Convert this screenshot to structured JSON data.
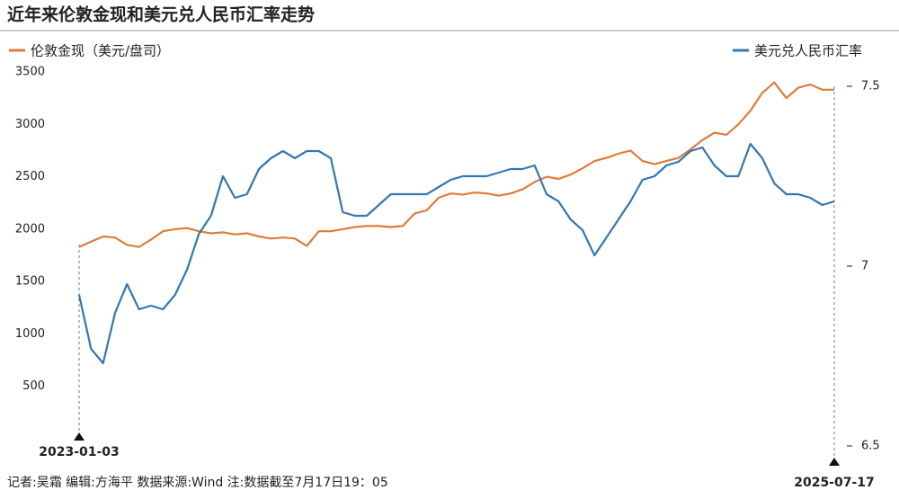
{
  "chart_data": {
    "type": "line",
    "title": "近年来伦敦金现和美元兑人民币汇率走势",
    "note": "记者:吴霜  编辑:方海平  数据来源:Wind  注:数据截至7月17日19：05",
    "categories": [
      "2023-01-03",
      null,
      null,
      null,
      null,
      null,
      null,
      null,
      null,
      null,
      null,
      null,
      null,
      null,
      null,
      null,
      null,
      null,
      null,
      null,
      null,
      null,
      null,
      null,
      null,
      null,
      null,
      null,
      null,
      null,
      null,
      null,
      null,
      null,
      null,
      null,
      null,
      null,
      null,
      null,
      null,
      null,
      null,
      null,
      null,
      null,
      null,
      null,
      null,
      null,
      null,
      null,
      null,
      null,
      null,
      null,
      null,
      null,
      null,
      null,
      null,
      null,
      null,
      "2025-07-17"
    ],
    "series": [
      {
        "name": "伦敦金现（美元/盘司）",
        "color": "#e07b39",
        "axis": "y",
        "values": [
          1830,
          1880,
          1930,
          1920,
          1850,
          1830,
          1900,
          1980,
          2000,
          2010,
          1980,
          1960,
          1970,
          1950,
          1960,
          1930,
          1910,
          1920,
          1910,
          1840,
          1980,
          1980,
          2000,
          2020,
          2030,
          2030,
          2020,
          2030,
          2150,
          2180,
          2300,
          2340,
          2330,
          2350,
          2340,
          2320,
          2340,
          2380,
          2450,
          2500,
          2480,
          2520,
          2580,
          2650,
          2680,
          2720,
          2750,
          2650,
          2620,
          2650,
          2680,
          2760,
          2850,
          2920,
          2900,
          3000,
          3130,
          3300,
          3400,
          3250,
          3350,
          3380,
          3330,
          3330
        ]
      },
      {
        "name": "美元兑人民币汇率",
        "color": "#3577b0",
        "axis": "y2",
        "values": [
          6.92,
          6.77,
          6.73,
          6.87,
          6.95,
          6.88,
          6.89,
          6.88,
          6.92,
          6.99,
          7.09,
          7.14,
          7.25,
          7.19,
          7.2,
          7.27,
          7.3,
          7.32,
          7.3,
          7.32,
          7.32,
          7.3,
          7.15,
          7.14,
          7.14,
          7.17,
          7.2,
          7.2,
          7.2,
          7.2,
          7.22,
          7.24,
          7.25,
          7.25,
          7.25,
          7.26,
          7.27,
          7.27,
          7.28,
          7.2,
          7.18,
          7.13,
          7.1,
          7.03,
          7.08,
          7.13,
          7.18,
          7.24,
          7.25,
          7.28,
          7.29,
          7.32,
          7.33,
          7.28,
          7.25,
          7.25,
          7.34,
          7.3,
          7.23,
          7.2,
          7.2,
          7.19,
          7.17,
          7.18
        ]
      }
    ],
    "ylim": [
      0,
      3500
    ],
    "yticks": [
      500,
      1000,
      1500,
      2000,
      2500,
      3000,
      3500
    ],
    "y2lim": [
      6.52,
      7.54
    ],
    "y2ticks": [
      6.5,
      7,
      7.5
    ]
  }
}
